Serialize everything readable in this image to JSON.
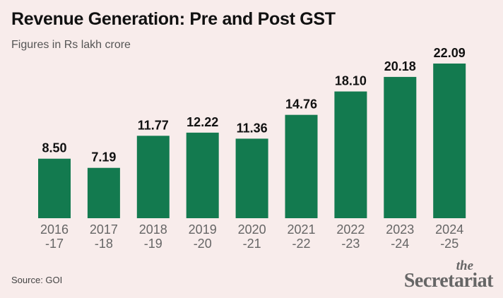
{
  "title": "Revenue Generation: Pre and Post GST",
  "subtitle": "Figures in Rs lakh crore",
  "source": "Source: GOI",
  "logo": {
    "the": "the",
    "name": "Secretariat"
  },
  "colors": {
    "background": "#f8eceb",
    "bar": "#137a4f",
    "text": "#111111",
    "axis_text": "#666666"
  },
  "chart_data": {
    "type": "bar",
    "title": "Revenue Generation: Pre and Post GST",
    "subtitle": "Figures in Rs lakh crore",
    "categories": [
      "2016\n-17",
      "2017\n-18",
      "2018\n-19",
      "2019\n-20",
      "2020\n-21",
      "2021\n-22",
      "2022\n-23",
      "2023\n-24",
      "2024\n-25"
    ],
    "values": [
      8.5,
      7.19,
      11.77,
      12.22,
      11.36,
      14.76,
      18.1,
      20.18,
      22.09
    ],
    "value_labels": [
      "8.50",
      "7.19",
      "11.77",
      "12.22",
      "11.36",
      "14.76",
      "18.10",
      "20.18",
      "22.09"
    ],
    "xlabel": "",
    "ylabel": "",
    "ylim": [
      0,
      23.5
    ],
    "grid": false,
    "legend": "none"
  }
}
